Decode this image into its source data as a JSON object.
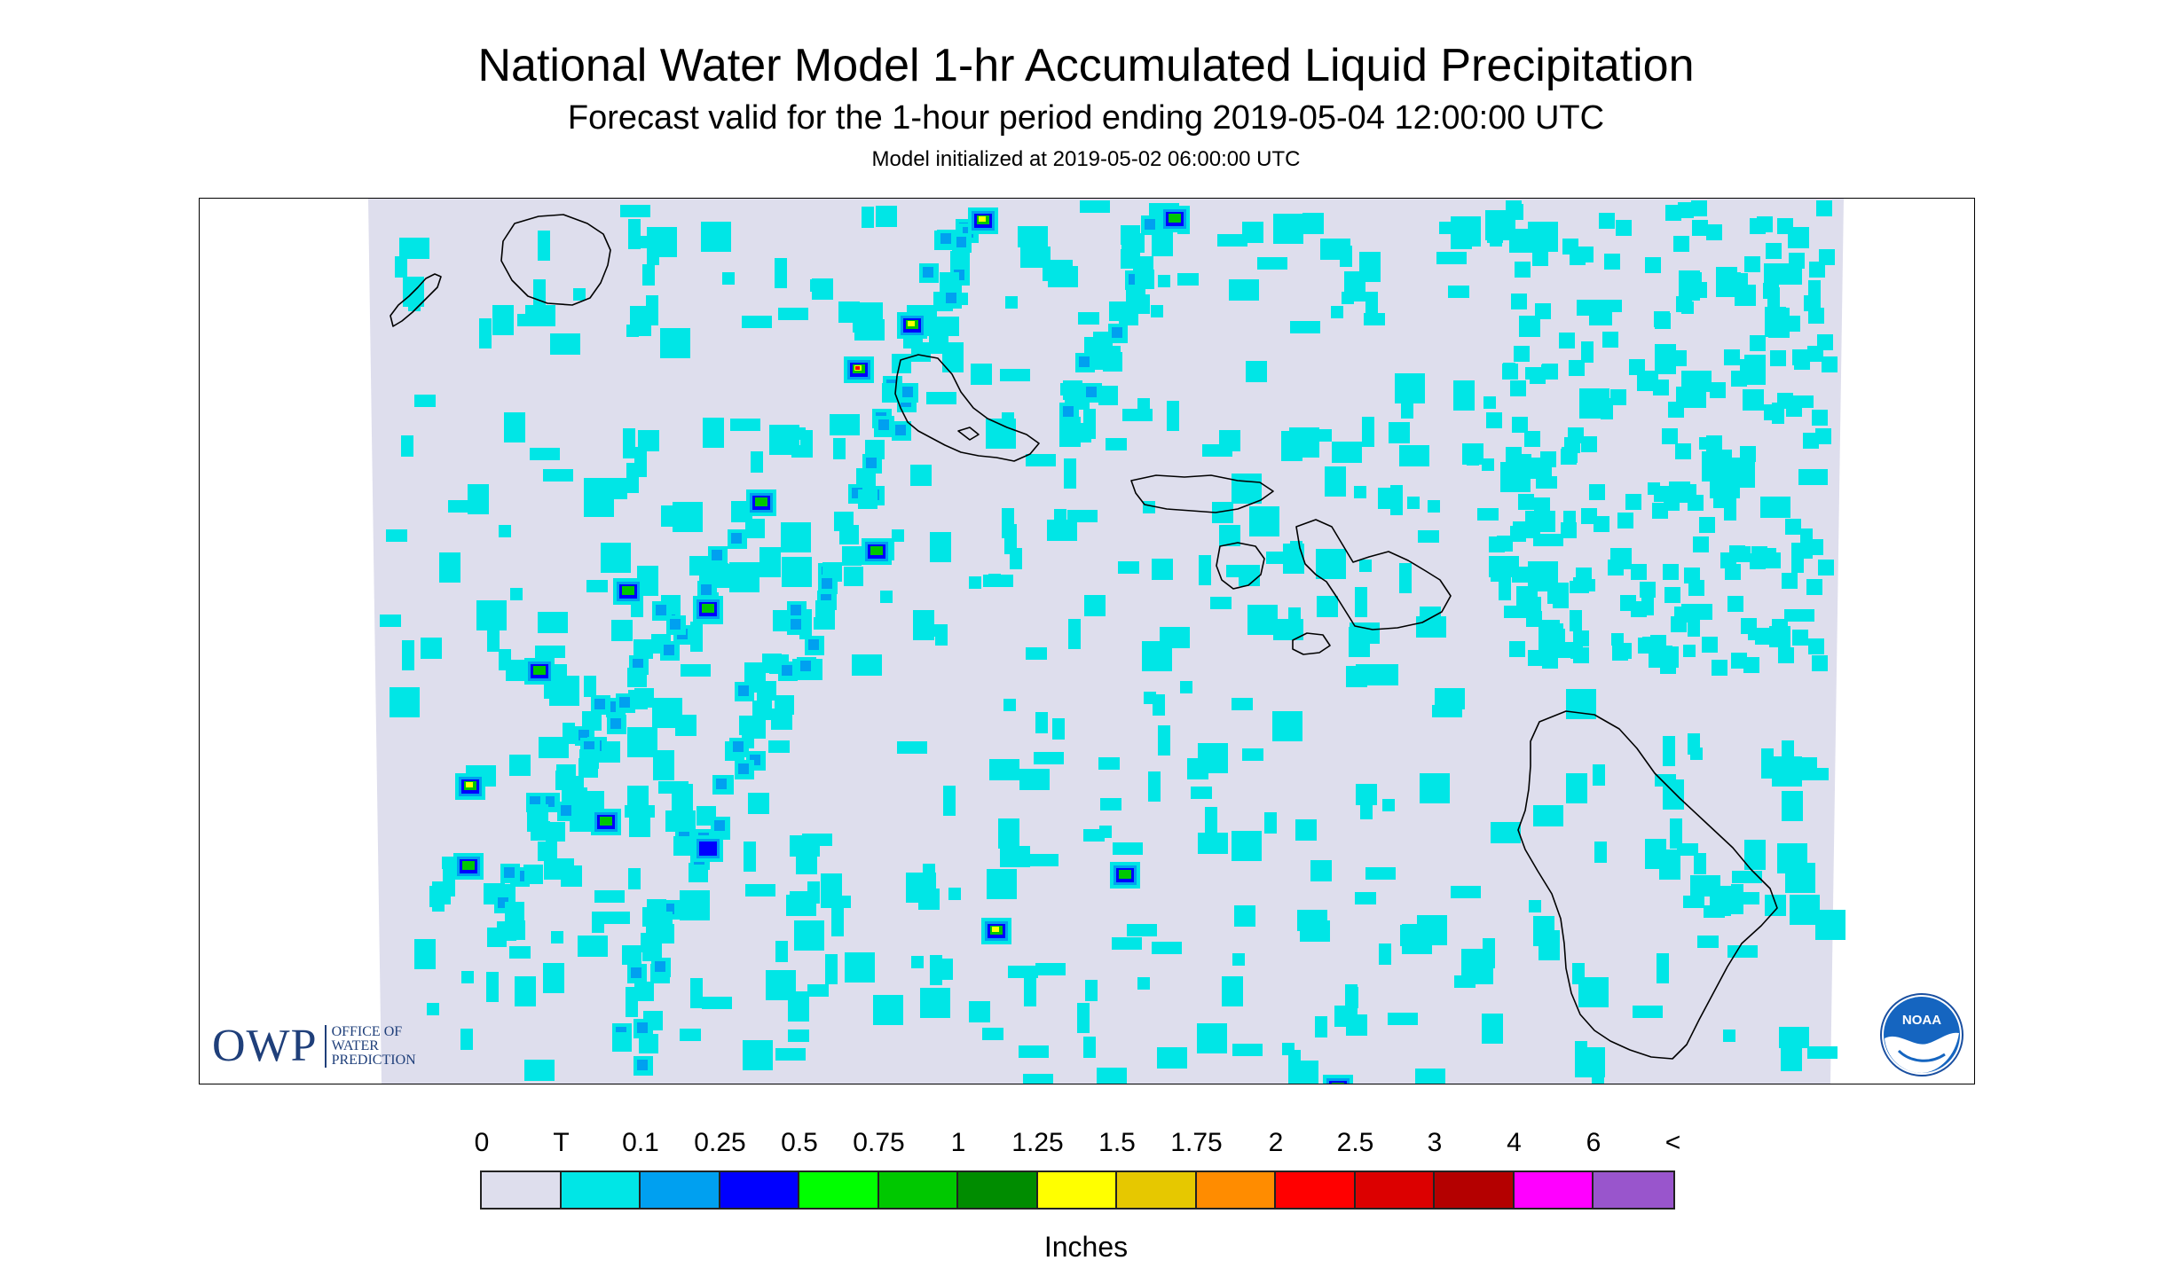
{
  "header": {
    "title": "National Water Model 1-hr Accumulated Liquid Precipitation",
    "subtitle": "Forecast valid for the 1-hour period ending 2019-05-04 12:00:00 UTC",
    "init": "Model initialized at 2019-05-02 06:00:00 UTC"
  },
  "map": {
    "background_color": "#dedeed",
    "outside_color": "#ffffff",
    "coast_color": "#000000",
    "islands": [
      "Kauai",
      "Niihau",
      "Oahu",
      "Molokai",
      "Lanai",
      "Maui",
      "Kahoolawe",
      "Hawaii"
    ]
  },
  "logos": {
    "owp_mark": "OWP",
    "owp_line1": "OFFICE OF",
    "owp_line2": "WATER",
    "owp_line3": "PREDICTION",
    "noaa": "NOAA"
  },
  "legend": {
    "labels": [
      "0",
      "T",
      "0.1",
      "0.25",
      "0.5",
      "0.75",
      "1",
      "1.25",
      "1.5",
      "1.75",
      "2",
      "2.5",
      "3",
      "4",
      "6",
      "<"
    ],
    "colors": [
      "#dedeed",
      "#00e6e6",
      "#00a0f0",
      "#0000ff",
      "#00ff00",
      "#00c800",
      "#008c00",
      "#ffff00",
      "#e6c800",
      "#ff8c00",
      "#ff0000",
      "#dc0000",
      "#b40000",
      "#ff00ff",
      "#9955cc"
    ],
    "units": "Inches"
  }
}
